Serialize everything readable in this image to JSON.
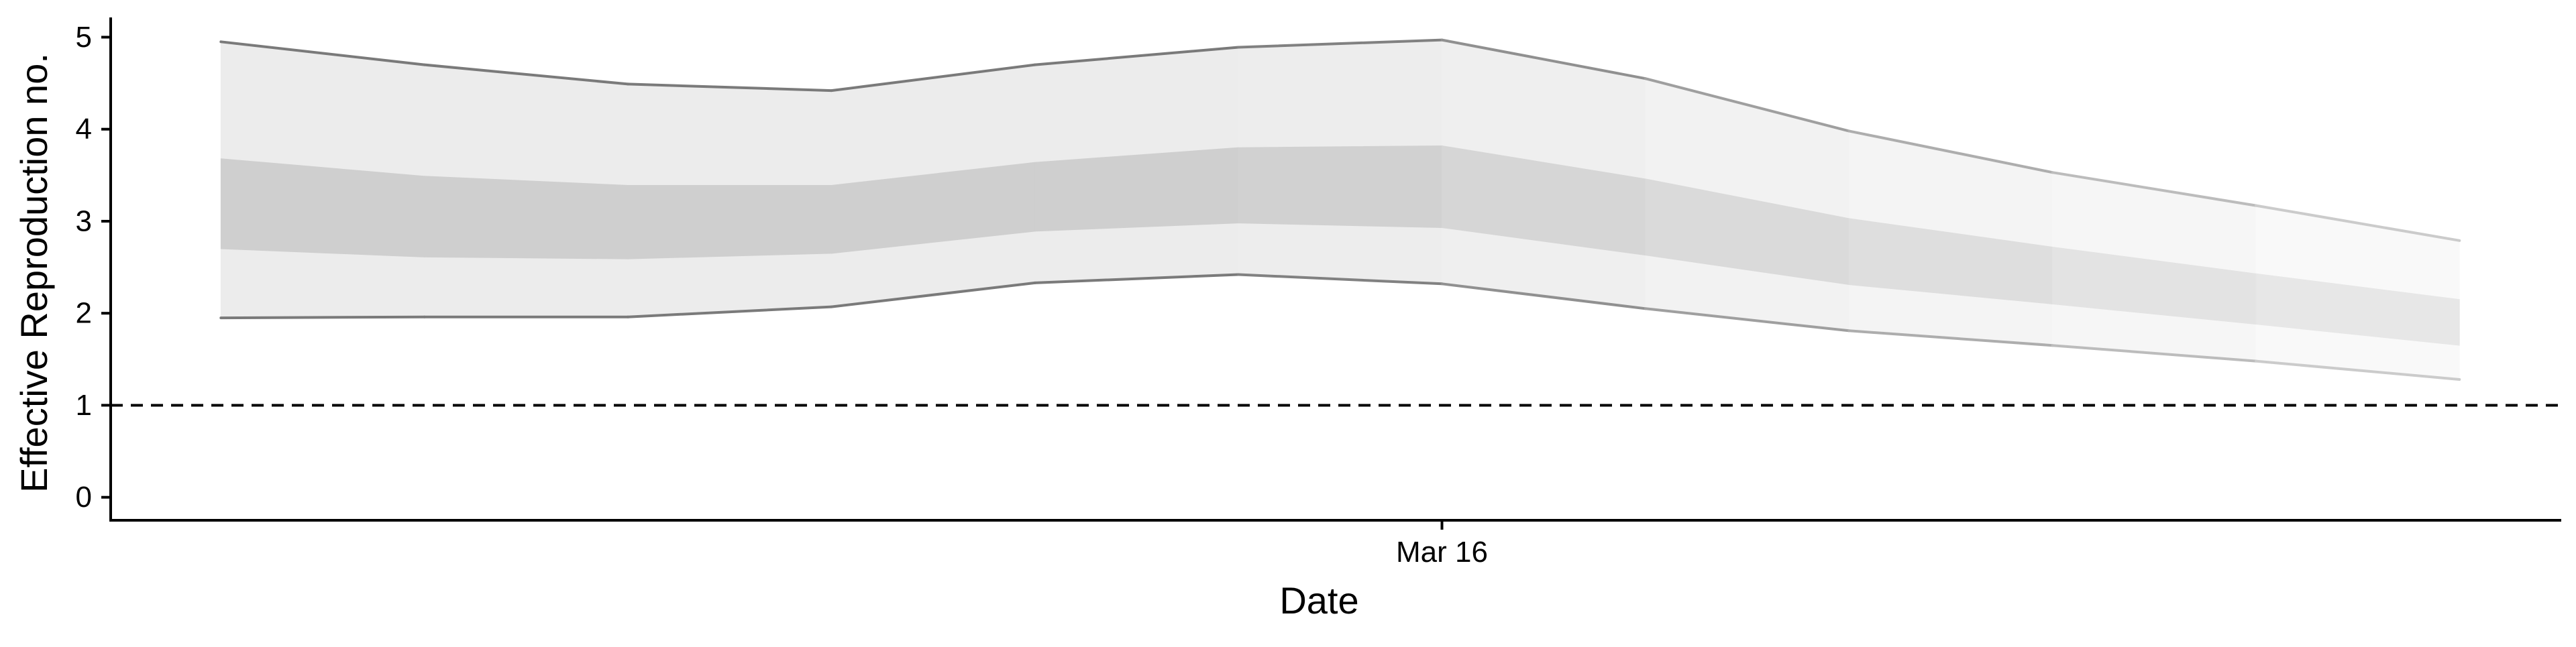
{
  "chart_data": {
    "type": "area",
    "title": "",
    "xlabel": "Date",
    "ylabel": "Effective Reproduction no.",
    "x": [
      "2020-03-10",
      "2020-03-11",
      "2020-03-12",
      "2020-03-13",
      "2020-03-14",
      "2020-03-15",
      "2020-03-16",
      "2020-03-17",
      "2020-03-18",
      "2020-03-19",
      "2020-03-20",
      "2020-03-21"
    ],
    "x_ticks": [
      {
        "value": "2020-03-16",
        "label": "Mar 16"
      }
    ],
    "xlim": [
      "2020-03-09T11:00",
      "2020-03-21T12:00"
    ],
    "y_ticks": [
      0,
      1,
      2,
      3,
      4,
      5
    ],
    "ylim": [
      -0.25,
      5.2
    ],
    "reference_line": {
      "y": 1,
      "style": "dashed"
    },
    "series": [
      {
        "band": "outer",
        "lower": [
          1.95,
          1.96,
          1.96,
          2.07,
          2.33,
          2.42,
          2.32,
          2.05,
          1.81,
          1.65,
          1.48,
          1.28
        ],
        "upper": [
          4.95,
          4.7,
          4.49,
          4.42,
          4.7,
          4.89,
          4.97,
          4.55,
          3.98,
          3.53,
          3.17,
          2.79
        ]
      },
      {
        "band": "inner",
        "lower": [
          2.7,
          2.61,
          2.59,
          2.65,
          2.89,
          2.98,
          2.93,
          2.63,
          2.31,
          2.1,
          1.88,
          1.65
        ],
        "upper": [
          3.68,
          3.49,
          3.39,
          3.39,
          3.64,
          3.8,
          3.82,
          3.46,
          3.03,
          2.72,
          2.43,
          2.15
        ]
      }
    ],
    "grid": false,
    "legend": "none",
    "colors": {
      "outer_band": "#ececec",
      "inner_band": "#cfcfcf",
      "outline_start": "#7a7a7a",
      "outline_end": "#d2d2d2",
      "axis": "#000000"
    },
    "fade_last_days": 6
  }
}
